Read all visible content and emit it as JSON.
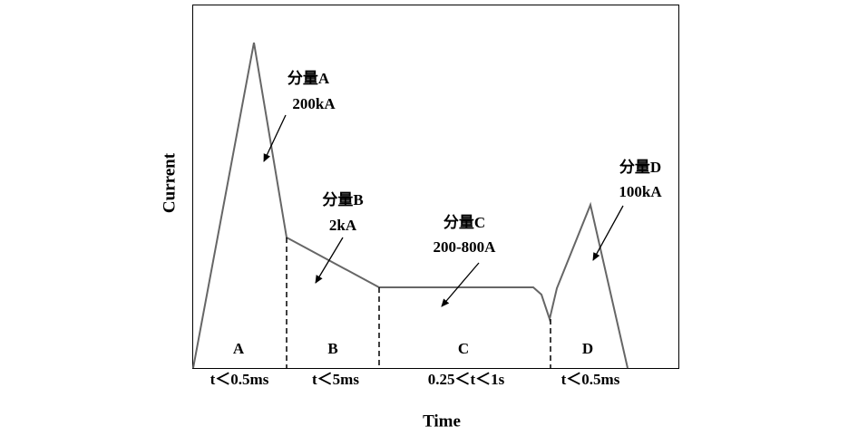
{
  "axes": {
    "x_label": "Time",
    "y_label": "Current"
  },
  "components": [
    {
      "name": "分量A",
      "amplitude": "200kA",
      "phase": "A",
      "duration": "t＜0.5ms"
    },
    {
      "name": "分量B",
      "amplitude": "2kA",
      "phase": "B",
      "duration": "t＜5ms"
    },
    {
      "name": "分量C",
      "amplitude": "200-800A",
      "phase": "C",
      "duration": "0.25＜t＜1s"
    },
    {
      "name": "分量D",
      "amplitude": "100kA",
      "phase": "D",
      "duration": "t＜0.5ms"
    }
  ]
}
